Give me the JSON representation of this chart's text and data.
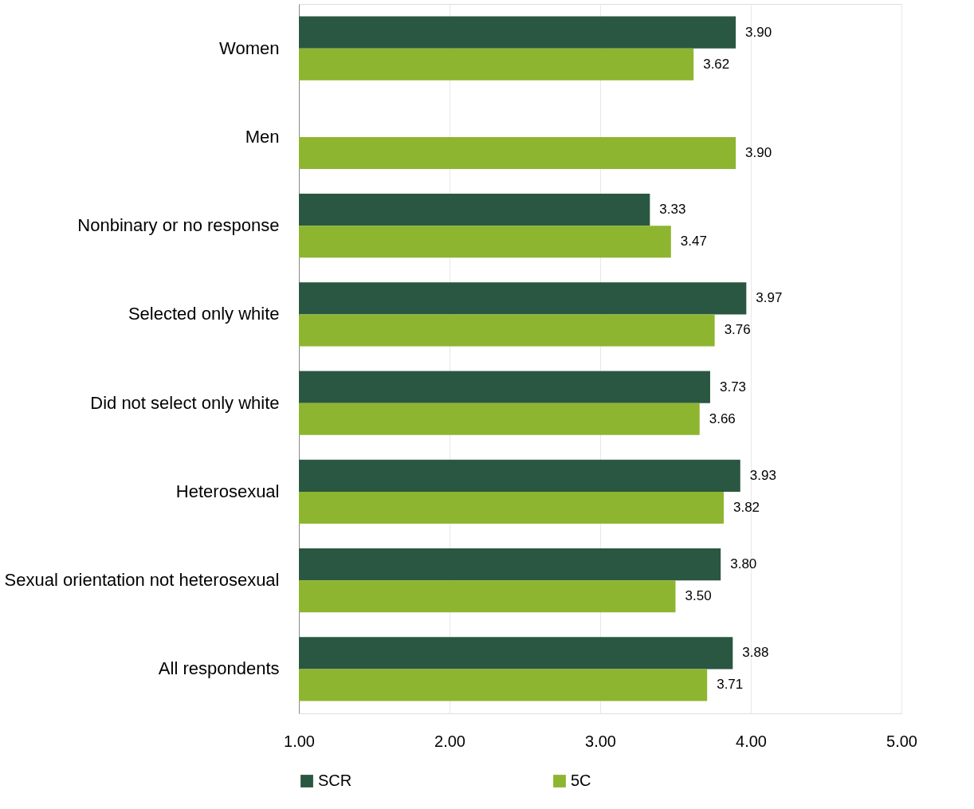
{
  "chart_data": {
    "type": "bar",
    "orientation": "horizontal",
    "categories": [
      "Women",
      "Men",
      "Nonbinary or no response",
      "Selected only white",
      "Did not select only white",
      "Heterosexual",
      "Sexual orientation not heterosexual",
      "All respondents"
    ],
    "series": [
      {
        "name": "SCR",
        "color": "#2a5741",
        "values": [
          3.9,
          null,
          3.33,
          3.97,
          3.73,
          3.93,
          3.8,
          3.88
        ],
        "value_labels": [
          "3.90",
          null,
          "3.33",
          "3.97",
          "3.73",
          "3.93",
          "3.80",
          "3.88"
        ]
      },
      {
        "name": "5C",
        "color": "#8db52f",
        "values": [
          3.62,
          3.9,
          3.47,
          3.76,
          3.66,
          3.82,
          3.5,
          3.71
        ],
        "value_labels": [
          "3.62",
          "3.90",
          "3.47",
          "3.76",
          "3.66",
          "3.82",
          "3.50",
          "3.71"
        ]
      }
    ],
    "xlim": [
      1,
      5
    ],
    "xticks": [
      {
        "value": 1,
        "label": "1.00"
      },
      {
        "value": 2,
        "label": "2.00"
      },
      {
        "value": 3,
        "label": "3.00"
      },
      {
        "value": 4,
        "label": "4.00"
      },
      {
        "value": 5,
        "label": "5.00"
      }
    ],
    "grid": "x",
    "legend": "bottom"
  }
}
